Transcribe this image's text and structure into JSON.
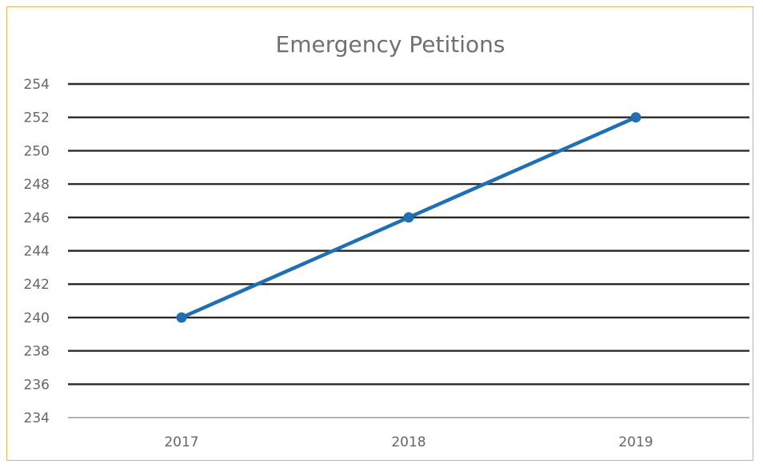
{
  "chart_data": {
    "type": "line",
    "title": "Emergency Petitions",
    "xlabel": "",
    "ylabel": "",
    "categories": [
      "2017",
      "2018",
      "2019"
    ],
    "series": [
      {
        "values": [
          240,
          246,
          252
        ]
      }
    ],
    "ylim": [
      234,
      254
    ],
    "yticks": [
      "234",
      "236",
      "238",
      "240",
      "242",
      "244",
      "246",
      "248",
      "250",
      "252",
      "254"
    ],
    "grid": true,
    "legend": "none",
    "colors": {
      "series": "#1f6fb2",
      "gridline": "#2a2a2a",
      "border": "#d8b860",
      "text": "#666666"
    }
  }
}
